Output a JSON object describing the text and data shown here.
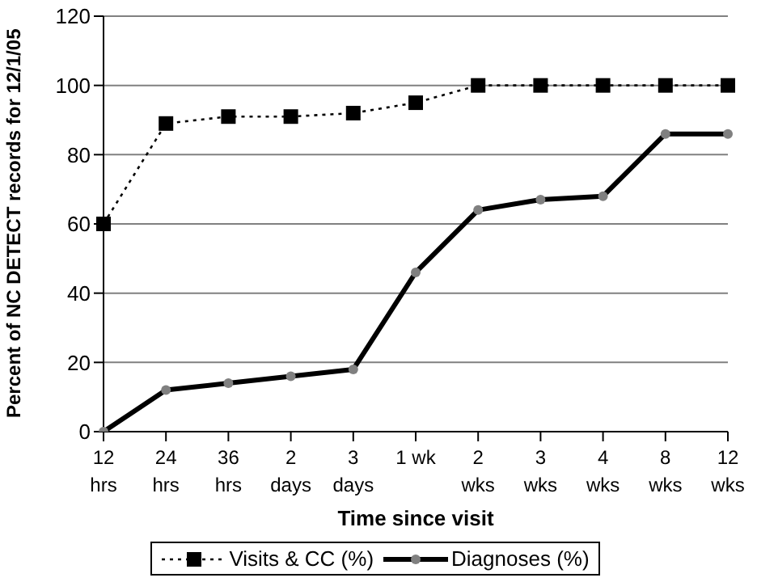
{
  "chart_data": {
    "type": "line",
    "xlabel": "Time since visit",
    "ylabel": "Percent of NC DETECT records for 12/1/05",
    "categories": [
      "12\nhrs",
      "24\nhrs",
      "36\nhrs",
      "2\ndays",
      "3\ndays",
      "1 wk",
      "2\nwks",
      "3\nwks",
      "4\nwks",
      "8\nwks",
      "12\nwks"
    ],
    "series": [
      {
        "name": "Visits & CC (%)",
        "color": "#000000",
        "marker": "square",
        "line_style": "dotted",
        "values": [
          60,
          89,
          91,
          91,
          92,
          95,
          100,
          100,
          100,
          100,
          100
        ]
      },
      {
        "name": "Diagnoses (%)",
        "color": "#000000",
        "marker": "circle",
        "line_style": "solid",
        "values": [
          0,
          12,
          14,
          16,
          18,
          46,
          64,
          67,
          68,
          86,
          86
        ]
      }
    ],
    "ylim": [
      0,
      120
    ],
    "yticks": [
      0,
      20,
      40,
      60,
      80,
      100,
      120
    ],
    "grid": "y",
    "legend": "bottom"
  }
}
